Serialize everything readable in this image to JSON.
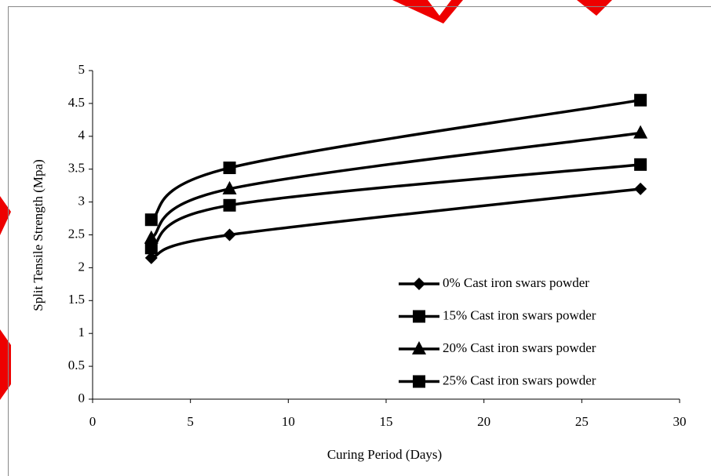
{
  "chart_data": {
    "type": "line",
    "smooth": true,
    "x_label": "Curing Period (Days)",
    "y_label": "Split Tensile Strength (Mpa)",
    "x": [
      3,
      7,
      28
    ],
    "xlim": [
      0,
      30
    ],
    "xticks": [
      0,
      5,
      10,
      15,
      20,
      25,
      30
    ],
    "ylim": [
      0,
      5
    ],
    "yticks": [
      0,
      0.5,
      1,
      1.5,
      2,
      2.5,
      3,
      3.5,
      4,
      4.5,
      5
    ],
    "legend": "lower-right",
    "series": [
      {
        "name": "0% Cast iron swars powder",
        "color": "#000000",
        "marker": "diamond",
        "values": [
          2.15,
          2.5,
          3.2
        ]
      },
      {
        "name": "15% Cast iron swars powder",
        "color": "#000000",
        "marker": "square",
        "values": [
          2.3,
          2.95,
          3.57
        ]
      },
      {
        "name": "20% Cast iron swars powder",
        "color": "#000000",
        "marker": "triangle",
        "values": [
          2.45,
          3.2,
          4.05
        ]
      },
      {
        "name": "25% Cast iron swars powder",
        "color": "#000000",
        "marker": "square",
        "values": [
          2.73,
          3.52,
          4.55
        ]
      }
    ]
  }
}
